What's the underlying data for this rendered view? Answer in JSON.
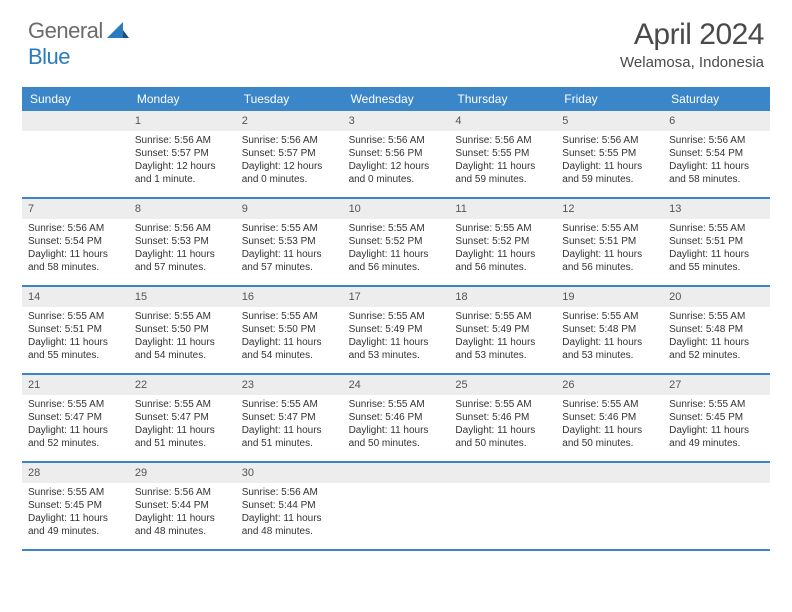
{
  "logo": {
    "general": "General",
    "blue": "Blue"
  },
  "title": "April 2024",
  "location": "Welamosa, Indonesia",
  "colors": {
    "header_bg": "#3b86c8",
    "header_text": "#ffffff",
    "daynum_bg": "#ededed",
    "week_border": "#3b86c8",
    "logo_gray": "#6b6b6b",
    "logo_blue": "#2b7bbf",
    "text": "#333333",
    "title_color": "#4a4a4a"
  },
  "dow": [
    "Sunday",
    "Monday",
    "Tuesday",
    "Wednesday",
    "Thursday",
    "Friday",
    "Saturday"
  ],
  "weeks": [
    [
      {
        "n": "",
        "sr": "",
        "ss": "",
        "dl": ""
      },
      {
        "n": "1",
        "sr": "Sunrise: 5:56 AM",
        "ss": "Sunset: 5:57 PM",
        "dl": "Daylight: 12 hours and 1 minute."
      },
      {
        "n": "2",
        "sr": "Sunrise: 5:56 AM",
        "ss": "Sunset: 5:57 PM",
        "dl": "Daylight: 12 hours and 0 minutes."
      },
      {
        "n": "3",
        "sr": "Sunrise: 5:56 AM",
        "ss": "Sunset: 5:56 PM",
        "dl": "Daylight: 12 hours and 0 minutes."
      },
      {
        "n": "4",
        "sr": "Sunrise: 5:56 AM",
        "ss": "Sunset: 5:55 PM",
        "dl": "Daylight: 11 hours and 59 minutes."
      },
      {
        "n": "5",
        "sr": "Sunrise: 5:56 AM",
        "ss": "Sunset: 5:55 PM",
        "dl": "Daylight: 11 hours and 59 minutes."
      },
      {
        "n": "6",
        "sr": "Sunrise: 5:56 AM",
        "ss": "Sunset: 5:54 PM",
        "dl": "Daylight: 11 hours and 58 minutes."
      }
    ],
    [
      {
        "n": "7",
        "sr": "Sunrise: 5:56 AM",
        "ss": "Sunset: 5:54 PM",
        "dl": "Daylight: 11 hours and 58 minutes."
      },
      {
        "n": "8",
        "sr": "Sunrise: 5:56 AM",
        "ss": "Sunset: 5:53 PM",
        "dl": "Daylight: 11 hours and 57 minutes."
      },
      {
        "n": "9",
        "sr": "Sunrise: 5:55 AM",
        "ss": "Sunset: 5:53 PM",
        "dl": "Daylight: 11 hours and 57 minutes."
      },
      {
        "n": "10",
        "sr": "Sunrise: 5:55 AM",
        "ss": "Sunset: 5:52 PM",
        "dl": "Daylight: 11 hours and 56 minutes."
      },
      {
        "n": "11",
        "sr": "Sunrise: 5:55 AM",
        "ss": "Sunset: 5:52 PM",
        "dl": "Daylight: 11 hours and 56 minutes."
      },
      {
        "n": "12",
        "sr": "Sunrise: 5:55 AM",
        "ss": "Sunset: 5:51 PM",
        "dl": "Daylight: 11 hours and 56 minutes."
      },
      {
        "n": "13",
        "sr": "Sunrise: 5:55 AM",
        "ss": "Sunset: 5:51 PM",
        "dl": "Daylight: 11 hours and 55 minutes."
      }
    ],
    [
      {
        "n": "14",
        "sr": "Sunrise: 5:55 AM",
        "ss": "Sunset: 5:51 PM",
        "dl": "Daylight: 11 hours and 55 minutes."
      },
      {
        "n": "15",
        "sr": "Sunrise: 5:55 AM",
        "ss": "Sunset: 5:50 PM",
        "dl": "Daylight: 11 hours and 54 minutes."
      },
      {
        "n": "16",
        "sr": "Sunrise: 5:55 AM",
        "ss": "Sunset: 5:50 PM",
        "dl": "Daylight: 11 hours and 54 minutes."
      },
      {
        "n": "17",
        "sr": "Sunrise: 5:55 AM",
        "ss": "Sunset: 5:49 PM",
        "dl": "Daylight: 11 hours and 53 minutes."
      },
      {
        "n": "18",
        "sr": "Sunrise: 5:55 AM",
        "ss": "Sunset: 5:49 PM",
        "dl": "Daylight: 11 hours and 53 minutes."
      },
      {
        "n": "19",
        "sr": "Sunrise: 5:55 AM",
        "ss": "Sunset: 5:48 PM",
        "dl": "Daylight: 11 hours and 53 minutes."
      },
      {
        "n": "20",
        "sr": "Sunrise: 5:55 AM",
        "ss": "Sunset: 5:48 PM",
        "dl": "Daylight: 11 hours and 52 minutes."
      }
    ],
    [
      {
        "n": "21",
        "sr": "Sunrise: 5:55 AM",
        "ss": "Sunset: 5:47 PM",
        "dl": "Daylight: 11 hours and 52 minutes."
      },
      {
        "n": "22",
        "sr": "Sunrise: 5:55 AM",
        "ss": "Sunset: 5:47 PM",
        "dl": "Daylight: 11 hours and 51 minutes."
      },
      {
        "n": "23",
        "sr": "Sunrise: 5:55 AM",
        "ss": "Sunset: 5:47 PM",
        "dl": "Daylight: 11 hours and 51 minutes."
      },
      {
        "n": "24",
        "sr": "Sunrise: 5:55 AM",
        "ss": "Sunset: 5:46 PM",
        "dl": "Daylight: 11 hours and 50 minutes."
      },
      {
        "n": "25",
        "sr": "Sunrise: 5:55 AM",
        "ss": "Sunset: 5:46 PM",
        "dl": "Daylight: 11 hours and 50 minutes."
      },
      {
        "n": "26",
        "sr": "Sunrise: 5:55 AM",
        "ss": "Sunset: 5:46 PM",
        "dl": "Daylight: 11 hours and 50 minutes."
      },
      {
        "n": "27",
        "sr": "Sunrise: 5:55 AM",
        "ss": "Sunset: 5:45 PM",
        "dl": "Daylight: 11 hours and 49 minutes."
      }
    ],
    [
      {
        "n": "28",
        "sr": "Sunrise: 5:55 AM",
        "ss": "Sunset: 5:45 PM",
        "dl": "Daylight: 11 hours and 49 minutes."
      },
      {
        "n": "29",
        "sr": "Sunrise: 5:56 AM",
        "ss": "Sunset: 5:44 PM",
        "dl": "Daylight: 11 hours and 48 minutes."
      },
      {
        "n": "30",
        "sr": "Sunrise: 5:56 AM",
        "ss": "Sunset: 5:44 PM",
        "dl": "Daylight: 11 hours and 48 minutes."
      },
      {
        "n": "",
        "sr": "",
        "ss": "",
        "dl": ""
      },
      {
        "n": "",
        "sr": "",
        "ss": "",
        "dl": ""
      },
      {
        "n": "",
        "sr": "",
        "ss": "",
        "dl": ""
      },
      {
        "n": "",
        "sr": "",
        "ss": "",
        "dl": ""
      }
    ]
  ]
}
